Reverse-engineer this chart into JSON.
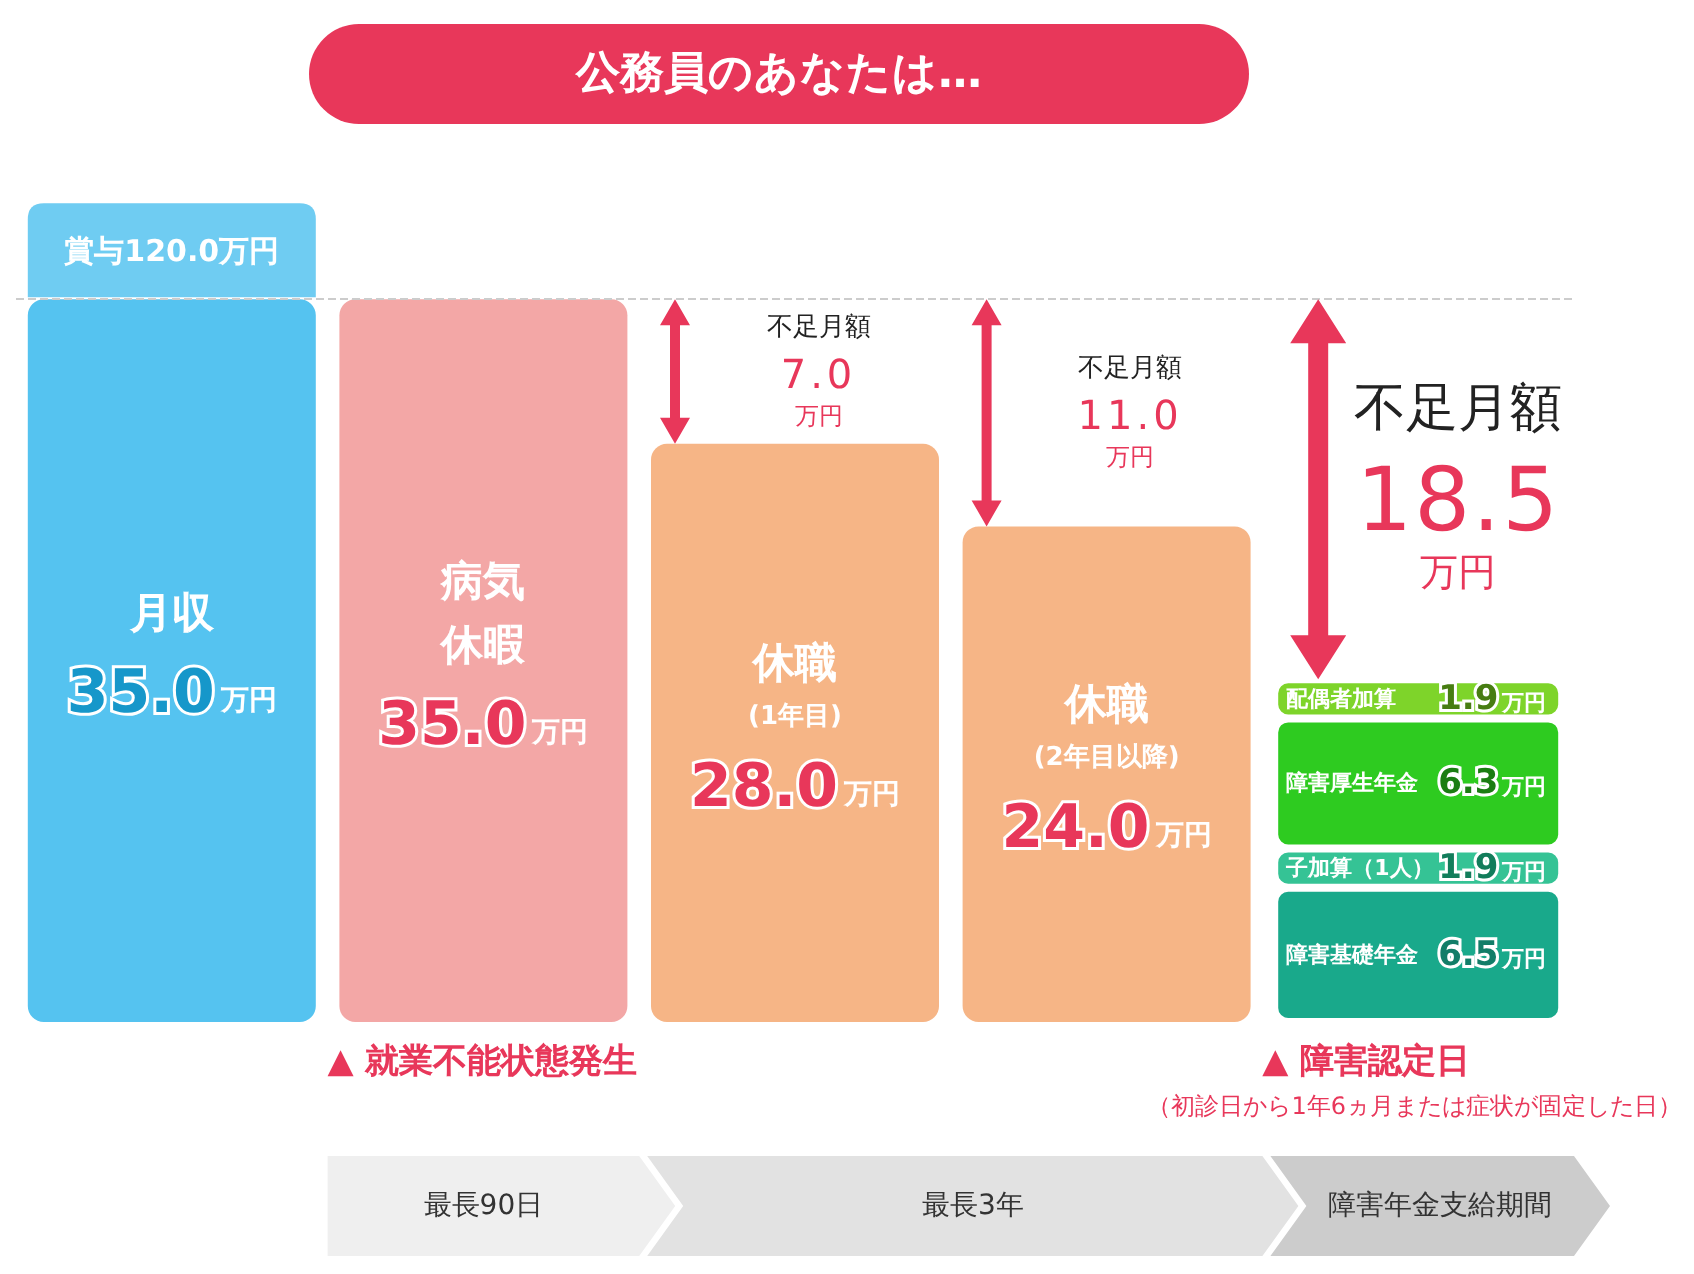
{
  "chart_data": {
    "type": "bar",
    "title": "公務員のあなたは…",
    "categories": [
      "月収",
      "病気休暇",
      "休職(1年目)",
      "休職(2年目以降)",
      null
    ],
    "stacked": true,
    "tick_labels": "x",
    "series": [
      {
        "values": [
          35,
          35,
          28,
          24,
          null
        ],
        "colors": [
          "#55c3f0",
          "#f3a7a6",
          "#f6b586",
          "#f6b586",
          null
        ],
        "value_labels": [
          "35.0万円",
          "35.0万円",
          "28.0万円",
          "24.0万円",
          null
        ]
      },
      {
        "name": "障害基礎年金",
        "color": "#19a98b",
        "values": [
          null,
          null,
          null,
          null,
          6.5
        ],
        "value_labels": [
          null,
          null,
          null,
          null,
          "6.5万円"
        ]
      },
      {
        "name": "子加算（1人）",
        "color": "#35c395",
        "values": [
          null,
          null,
          null,
          null,
          1.9
        ],
        "value_labels": [
          null,
          null,
          null,
          null,
          "1.9万円"
        ]
      },
      {
        "name": "障害厚生年金",
        "color": "#2ecb20",
        "values": [
          null,
          null,
          null,
          null,
          6.3
        ],
        "value_labels": [
          null,
          null,
          null,
          null,
          "6.3万円"
        ]
      },
      {
        "name": "配偶者加算",
        "color": "#7ed42a",
        "values": [
          null,
          null,
          null,
          null,
          1.9
        ],
        "value_labels": [
          null,
          null,
          null,
          null,
          "1.9万円"
        ]
      }
    ],
    "ref_lines": [
      {
        "axis": "y",
        "value": 35,
        "color": "#cccccc",
        "line_style": "dashed"
      }
    ],
    "annotations": [
      {
        "text": "賞与120.0万円",
        "x": "月収",
        "y": 35
      },
      {
        "text": "不足月額\n7.0\n万円",
        "x": "休職(1年目)",
        "y": 35
      },
      {
        "text": "不足月額\n11.0\n万円",
        "x": "休職(2年目以降)",
        "y": 35
      },
      {
        "text": "不足月額\n18.5\n万円",
        "y": 35
      },
      "▲ 就業不能状態発生",
      "▲ 障害認定日",
      "（初診日から1年6ヵ月または症状が固定した日）",
      "最長90日",
      "最長3年",
      "障害年金支給期間"
    ]
  }
}
